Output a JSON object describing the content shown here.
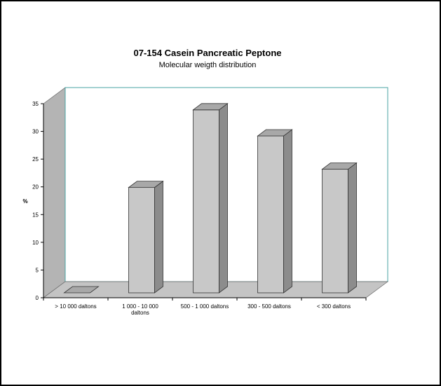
{
  "chart_data": {
    "type": "bar",
    "title": "07-154 Casein Pancreatic Peptone",
    "subtitle": "Molecular weigth distribution",
    "ylabel": "%",
    "xlabel": "",
    "ylim": [
      0,
      35
    ],
    "yticks": [
      0,
      5,
      10,
      15,
      20,
      25,
      30,
      35
    ],
    "categories": [
      [
        "> 10 000 daltons"
      ],
      [
        "1 000 - 10 000",
        "daltons"
      ],
      [
        "500 - 1 000 daltons"
      ],
      [
        "300 - 500 daltons"
      ],
      [
        "< 300 daltons"
      ]
    ],
    "values": [
      0,
      19,
      33,
      28.3,
      22.3
    ],
    "grid": false,
    "legend": "none",
    "colors": {
      "bar_front": "#c8c8c8",
      "bar_top": "#a8a8a8",
      "bar_side": "#8c8c8c",
      "floor": "#c4c4c4",
      "left_wall": "#b4b4b4",
      "back_frame": "#4aa3a3",
      "frame_border": "#000000"
    }
  }
}
